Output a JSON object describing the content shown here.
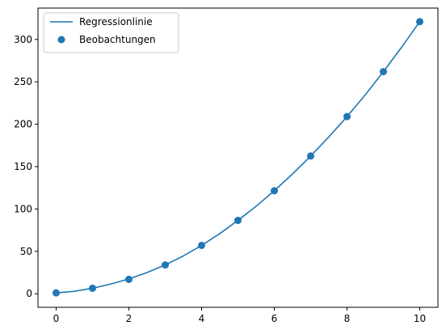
{
  "chart_data": {
    "type": "scatter",
    "title": "",
    "xlabel": "",
    "ylabel": "",
    "xlim": [
      -0.5,
      10.5
    ],
    "ylim": [
      -16,
      337
    ],
    "xticks": [
      0,
      2,
      4,
      6,
      8,
      10
    ],
    "yticks": [
      0,
      50,
      100,
      150,
      200,
      250,
      300
    ],
    "grid": false,
    "legend": {
      "position": "top-left",
      "entries": [
        {
          "label": "Regressionlinie",
          "kind": "line"
        },
        {
          "label": "Beobachtungen",
          "kind": "marker"
        }
      ]
    },
    "series": [
      {
        "name": "Regressionlinie",
        "kind": "line",
        "color": "#1f77b4",
        "x": [
          0,
          0.5,
          1,
          1.5,
          2,
          2.5,
          3,
          3.5,
          4,
          4.5,
          5,
          5.5,
          6,
          6.5,
          7,
          7.5,
          8,
          8.5,
          9,
          9.5,
          10
        ],
        "y": [
          1,
          2.9,
          6.5,
          11.4,
          17.5,
          25,
          34,
          44.6,
          57,
          71,
          86.5,
          103.3,
          121.5,
          141.3,
          162.5,
          185,
          209,
          234.6,
          262,
          290.7,
          321
        ]
      },
      {
        "name": "Beobachtungen",
        "kind": "scatter",
        "color": "#1f77b4",
        "x": [
          0,
          1,
          2,
          3,
          4,
          5,
          6,
          7,
          8,
          9,
          10
        ],
        "y": [
          1,
          6.5,
          17,
          34,
          57,
          86.5,
          121.5,
          162.5,
          209,
          262,
          321
        ]
      }
    ]
  }
}
